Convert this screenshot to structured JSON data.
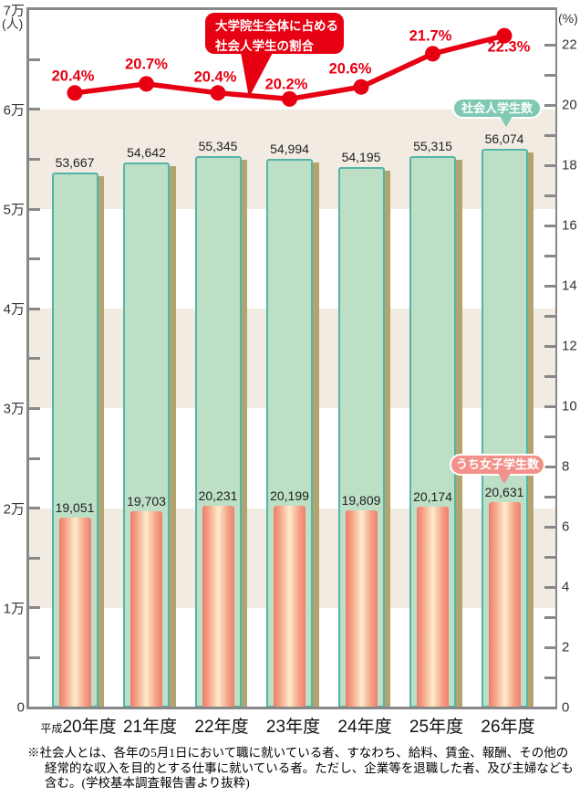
{
  "chart_data": {
    "type": "combo-bar-line",
    "categories": [
      {
        "prefix": "平成",
        "label": "20年度"
      },
      {
        "prefix": "",
        "label": "21年度"
      },
      {
        "prefix": "",
        "label": "22年度"
      },
      {
        "prefix": "",
        "label": "23年度"
      },
      {
        "prefix": "",
        "label": "24年度"
      },
      {
        "prefix": "",
        "label": "25年度"
      },
      {
        "prefix": "",
        "label": "26年度"
      }
    ],
    "series": [
      {
        "name": "社会人学生数",
        "type": "bar",
        "values": [
          53667,
          54642,
          55345,
          54994,
          54195,
          55315,
          56074
        ],
        "value_labels": [
          "53,667",
          "54,642",
          "55,345",
          "54,994",
          "54,195",
          "55,315",
          "56,074"
        ]
      },
      {
        "name": "うち女子学生数",
        "type": "bar",
        "values": [
          19051,
          19703,
          20231,
          20199,
          19809,
          20174,
          20631
        ],
        "value_labels": [
          "19,051",
          "19,703",
          "20,231",
          "20,199",
          "19,809",
          "20,174",
          "20,631"
        ]
      },
      {
        "name": "大学院生全体に占める社会人学生の割合",
        "type": "line",
        "values": [
          20.4,
          20.7,
          20.4,
          20.2,
          20.6,
          21.7,
          22.3
        ],
        "value_labels": [
          "20.4%",
          "20.7%",
          "20.4%",
          "20.2%",
          "20.6%",
          "21.7%",
          "22.3%"
        ]
      }
    ],
    "left_axis": {
      "unit": "(人)",
      "tick_labels": [
        "0",
        "1万",
        "2万",
        "3万",
        "4万",
        "5万",
        "6万",
        "7万"
      ],
      "max_value": 70000,
      "minor_step": 5000
    },
    "right_axis": {
      "unit": "(%)",
      "tick_labels": [
        "0",
        "2",
        "4",
        "6",
        "8",
        "10",
        "12",
        "14",
        "16",
        "18",
        "20",
        "22"
      ],
      "minor_step": 1
    },
    "callout": {
      "lines": [
        "大学院生全体に占める",
        "社会人学生の割合"
      ]
    },
    "grid": "beige horizontal bands between odd/even 万 levels",
    "legend_position": "badges pointing at last bars"
  },
  "footnote": {
    "lines": [
      "※社会人とは、各年の5月1日において職に就いている者、すなわち、給料、賃金、報酬、その他の",
      "経常的な収入を目的とする仕事に就いている者。ただし、企業等を退職した者、及び主婦なども",
      "含む。(学校基本調査報告書より抜粋)"
    ]
  },
  "colors": {
    "red": "#e60012",
    "bar_green_fill": "#bcdfc5",
    "bar_green_border": "#55b4a8",
    "bar_pink_edge": "#ec7e6d",
    "bar_pink_center": "#fdeccb",
    "bar_shadow": "#b2a46e",
    "stripe_beige": "#f2ebe2",
    "pill_green": "#7fc9b4",
    "pill_pink": "#f2908a",
    "axis_gray": "#888888"
  }
}
